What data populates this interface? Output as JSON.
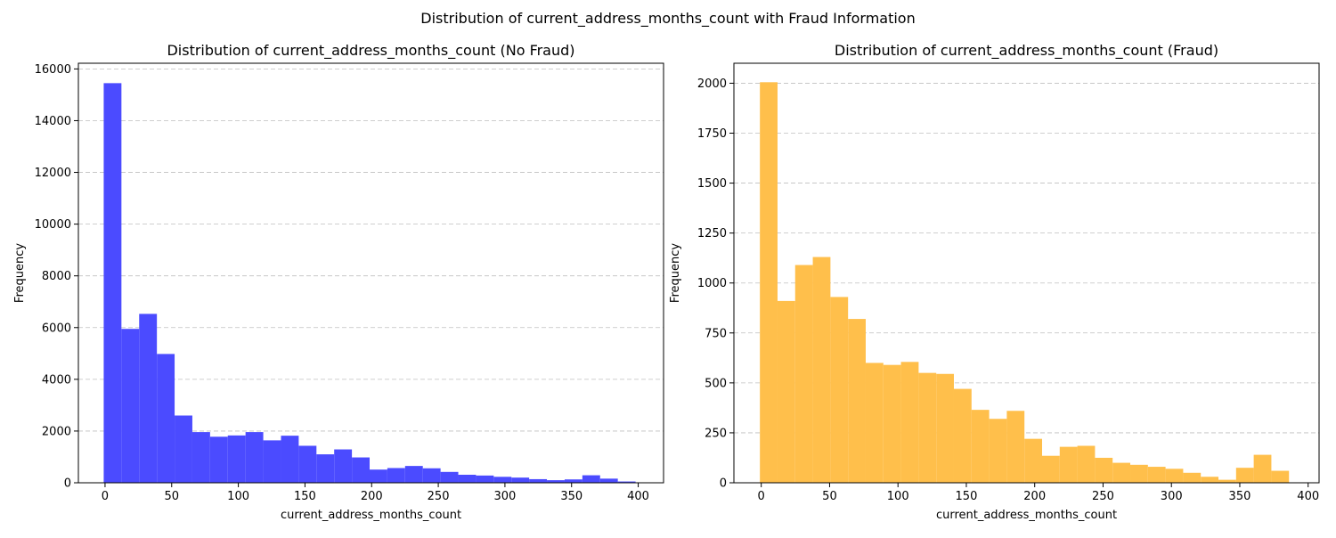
{
  "suptitle": "Distribution of current_address_months_count with Fraud Information",
  "chart_data": [
    {
      "type": "bar",
      "title": "Distribution of current_address_months_count (No Fraud)",
      "xlabel": "current_address_months_count",
      "ylabel": "Frequency",
      "color": "#4b4bff",
      "xlim": [
        -20,
        419
      ],
      "ylim": [
        0,
        16220
      ],
      "xticks": [
        0,
        50,
        100,
        150,
        200,
        250,
        300,
        350,
        400
      ],
      "yticks": [
        0,
        2000,
        4000,
        6000,
        8000,
        10000,
        12000,
        14000,
        16000
      ],
      "grid": "y",
      "bin_edges": [
        -1,
        12.3,
        25.6,
        38.9,
        52.2,
        65.5,
        78.8,
        92.1,
        105.4,
        118.7,
        132,
        145.3,
        158.6,
        171.9,
        185.2,
        198.5,
        211.8,
        225.1,
        238.4,
        251.7,
        265,
        278.3,
        291.6,
        304.9,
        318.2,
        331.5,
        344.8,
        358.1,
        371.4,
        384.7,
        398
      ],
      "values": [
        15450,
        5950,
        6530,
        4980,
        2600,
        1960,
        1780,
        1830,
        1960,
        1640,
        1820,
        1430,
        1100,
        1290,
        980,
        510,
        570,
        650,
        560,
        420,
        310,
        280,
        230,
        200,
        140,
        100,
        130,
        290,
        160,
        50
      ]
    },
    {
      "type": "bar",
      "title": "Distribution of current_address_months_count (Fraud)",
      "xlabel": "current_address_months_count",
      "ylabel": "Frequency",
      "color": "#ffbf4b",
      "xlim": [
        -20,
        408
      ],
      "ylim": [
        0,
        2100
      ],
      "xticks": [
        0,
        50,
        100,
        150,
        200,
        250,
        300,
        350,
        400
      ],
      "yticks": [
        0,
        250,
        500,
        750,
        1000,
        1250,
        1500,
        1750,
        2000
      ],
      "grid": "y",
      "bin_edges": [
        -1,
        11.9,
        24.8,
        37.7,
        50.6,
        63.5,
        76.4,
        89.3,
        102.2,
        115.1,
        128,
        140.9,
        153.8,
        166.7,
        179.6,
        192.5,
        205.4,
        218.3,
        231.2,
        244.1,
        257,
        269.9,
        282.8,
        295.7,
        308.6,
        321.5,
        334.4,
        347.3,
        360.2,
        373.1,
        386
      ],
      "values": [
        2005,
        910,
        1090,
        1130,
        930,
        820,
        600,
        590,
        605,
        550,
        545,
        470,
        365,
        320,
        360,
        220,
        135,
        180,
        185,
        125,
        100,
        90,
        80,
        70,
        50,
        30,
        15,
        75,
        140,
        60
      ]
    }
  ]
}
